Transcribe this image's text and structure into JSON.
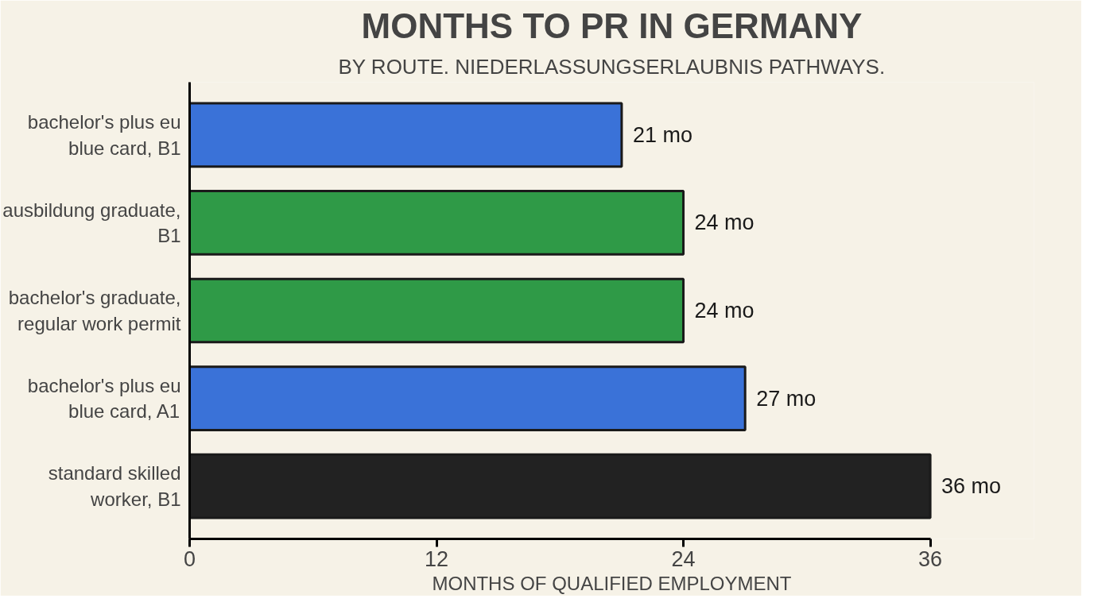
{
  "chart_data": {
    "type": "bar",
    "orientation": "horizontal",
    "title": "MONTHS TO PR IN GERMANY",
    "subtitle": "BY ROUTE. NIEDERLASSUNGSERLAUBNIS PATHWAYS.",
    "xlabel": "MONTHS OF QUALIFIED EMPLOYMENT",
    "categories": [
      "bachelor's plus eu blue card, B1",
      "ausbildung graduate, B1",
      "bachelor's graduate, regular work permit",
      "bachelor's plus eu blue card, A1",
      "standard skilled worker, B1"
    ],
    "values": [
      21,
      24,
      24,
      27,
      36
    ],
    "colors": [
      "#3a72d8",
      "#2f9a47",
      "#2f9a47",
      "#3a72d8",
      "#222222"
    ],
    "value_labels": [
      "21 mo",
      "24 mo",
      "24 mo",
      "27 mo",
      "36 mo"
    ],
    "xlim": [
      0,
      36
    ],
    "xticks": [
      0,
      12,
      24,
      36
    ]
  }
}
